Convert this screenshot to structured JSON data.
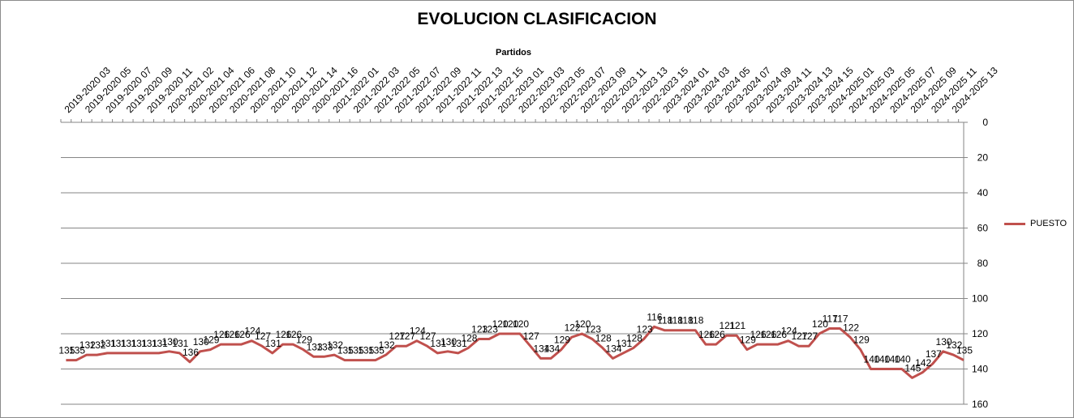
{
  "chart_data": {
    "type": "line",
    "title": "EVOLUCION CLASIFICACION",
    "xlabel": "Partidos",
    "ylabel": "",
    "ylim": [
      0,
      160
    ],
    "y_reversed": true,
    "y_ticks": [
      0,
      20,
      40,
      60,
      80,
      100,
      120,
      140,
      160
    ],
    "y_axis_position": "right",
    "x_axis_position": "top",
    "grid": true,
    "legend_position": "right",
    "colors": {
      "series": "#c0504d",
      "grid": "#868686"
    },
    "category_labels": [
      "2019-2020 03",
      "2019-2020 05",
      "2019-2020 07",
      "2019-2020 09",
      "2019-2020 11",
      "2020-2021 02",
      "2020-2021 04",
      "2020-2021 06",
      "2020-2021 08",
      "2020-2021 10",
      "2020-2021 12",
      "2020-2021 14",
      "2020-2021 16",
      "2021-2022 01",
      "2021-2022 03",
      "2021-2022 05",
      "2021-2022 07",
      "2021-2022 09",
      "2021-2022 11",
      "2021-2022 13",
      "2021-2022 15",
      "2022-2023 01",
      "2022-2023 03",
      "2022-2023 05",
      "2022-2023 07",
      "2022-2023 09",
      "2022-2023 11",
      "2022-2023 13",
      "2022-2023 15",
      "2023-2024 01",
      "2023-2024 03",
      "2023-2024 05",
      "2023-2024 07",
      "2023-2024 09",
      "2023-2024 11",
      "2023-2024 13",
      "2023-2024 15",
      "2024-2025 01",
      "2024-2025 03",
      "2024-2025 05",
      "2024-2025 07",
      "2024-2025 09",
      "2024-2025 11",
      "2024-2025 13"
    ],
    "series": [
      {
        "name": "PUESTO",
        "values": [
          135,
          135,
          132,
          132,
          131,
          131,
          131,
          131,
          131,
          131,
          130,
          131,
          136,
          130,
          129,
          126,
          126,
          126,
          124,
          127,
          131,
          126,
          126,
          129,
          133,
          133,
          132,
          135,
          135,
          135,
          135,
          132,
          127,
          127,
          124,
          127,
          131,
          130,
          131,
          128,
          123,
          123,
          120,
          120,
          120,
          127,
          134,
          134,
          129,
          122,
          120,
          123,
          128,
          134,
          131,
          128,
          123,
          116,
          118,
          118,
          118,
          118,
          126,
          126,
          121,
          121,
          129,
          126,
          126,
          126,
          124,
          127,
          127,
          120,
          117,
          117,
          122,
          129,
          140,
          140,
          140,
          140,
          145,
          142,
          137,
          130,
          132,
          135
        ]
      }
    ]
  }
}
